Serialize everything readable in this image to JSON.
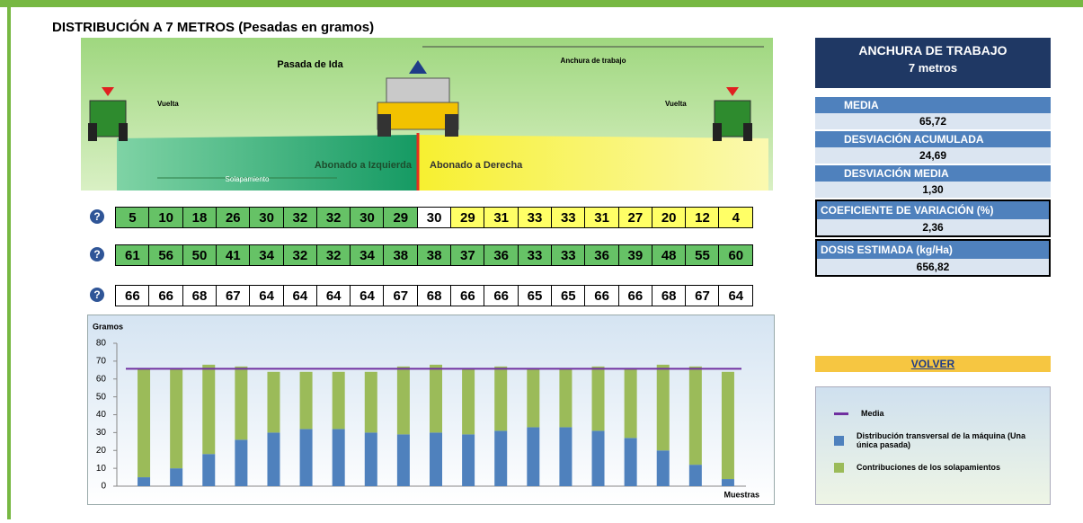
{
  "title": "DISTRIBUCIÓN A 7 METROS (Pesadas en gramos)",
  "illustration": {
    "pasada": "Pasada de Ida",
    "anchura": "Anchura de trabajo",
    "vuelta_left": "Vuelta",
    "vuelta_right": "Vuelta",
    "izquierda": "Abonado a Izquierda",
    "derecha": "Abonado a Derecha",
    "solapamiento": "Solapamiento"
  },
  "table": {
    "totals": [
      66,
      66,
      68,
      67,
      64,
      64,
      64,
      64,
      67,
      68,
      66,
      66,
      65,
      65,
      66,
      66,
      68,
      67,
      64
    ]
  },
  "panel": {
    "heading": "ANCHURA DE TRABAJO",
    "width": "7 metros",
    "stats": [
      {
        "label": "MEDIA",
        "value": "65,72"
      },
      {
        "label": "DESVIACIÓN ACUMULADA",
        "value": "24,69"
      },
      {
        "label": "DESVIACIÓN MEDIA",
        "value": "1,30"
      },
      {
        "label": "COEFICIENTE DE VARIACIÓN (%)",
        "value": "2,36"
      },
      {
        "label": "DOSIS ESTIMADA (kg/Ha)",
        "value": "656,82"
      }
    ],
    "button": "VOLVER"
  },
  "chart_data": {
    "type": "bar",
    "stacked": true,
    "y_label": "Gramos",
    "x_label": "Muestras",
    "ylim": [
      0,
      80
    ],
    "yticks": [
      0,
      10,
      20,
      30,
      40,
      50,
      60,
      70,
      80
    ],
    "series": [
      {
        "name": "Distribución transversal de la máquina (Una única pasada)",
        "color": "#4f81bd",
        "values": [
          5,
          10,
          18,
          26,
          30,
          32,
          32,
          30,
          29,
          30,
          29,
          31,
          33,
          33,
          31,
          27,
          20,
          12,
          4
        ]
      },
      {
        "name": "Contribuciones  de los solapamientos",
        "color": "#9bbb59",
        "values": [
          61,
          56,
          50,
          41,
          34,
          32,
          32,
          34,
          38,
          38,
          37,
          36,
          33,
          33,
          36,
          39,
          48,
          55,
          60
        ]
      }
    ],
    "media_line": {
      "name": "Media",
      "value": 65.72,
      "color": "#7030a0"
    }
  }
}
